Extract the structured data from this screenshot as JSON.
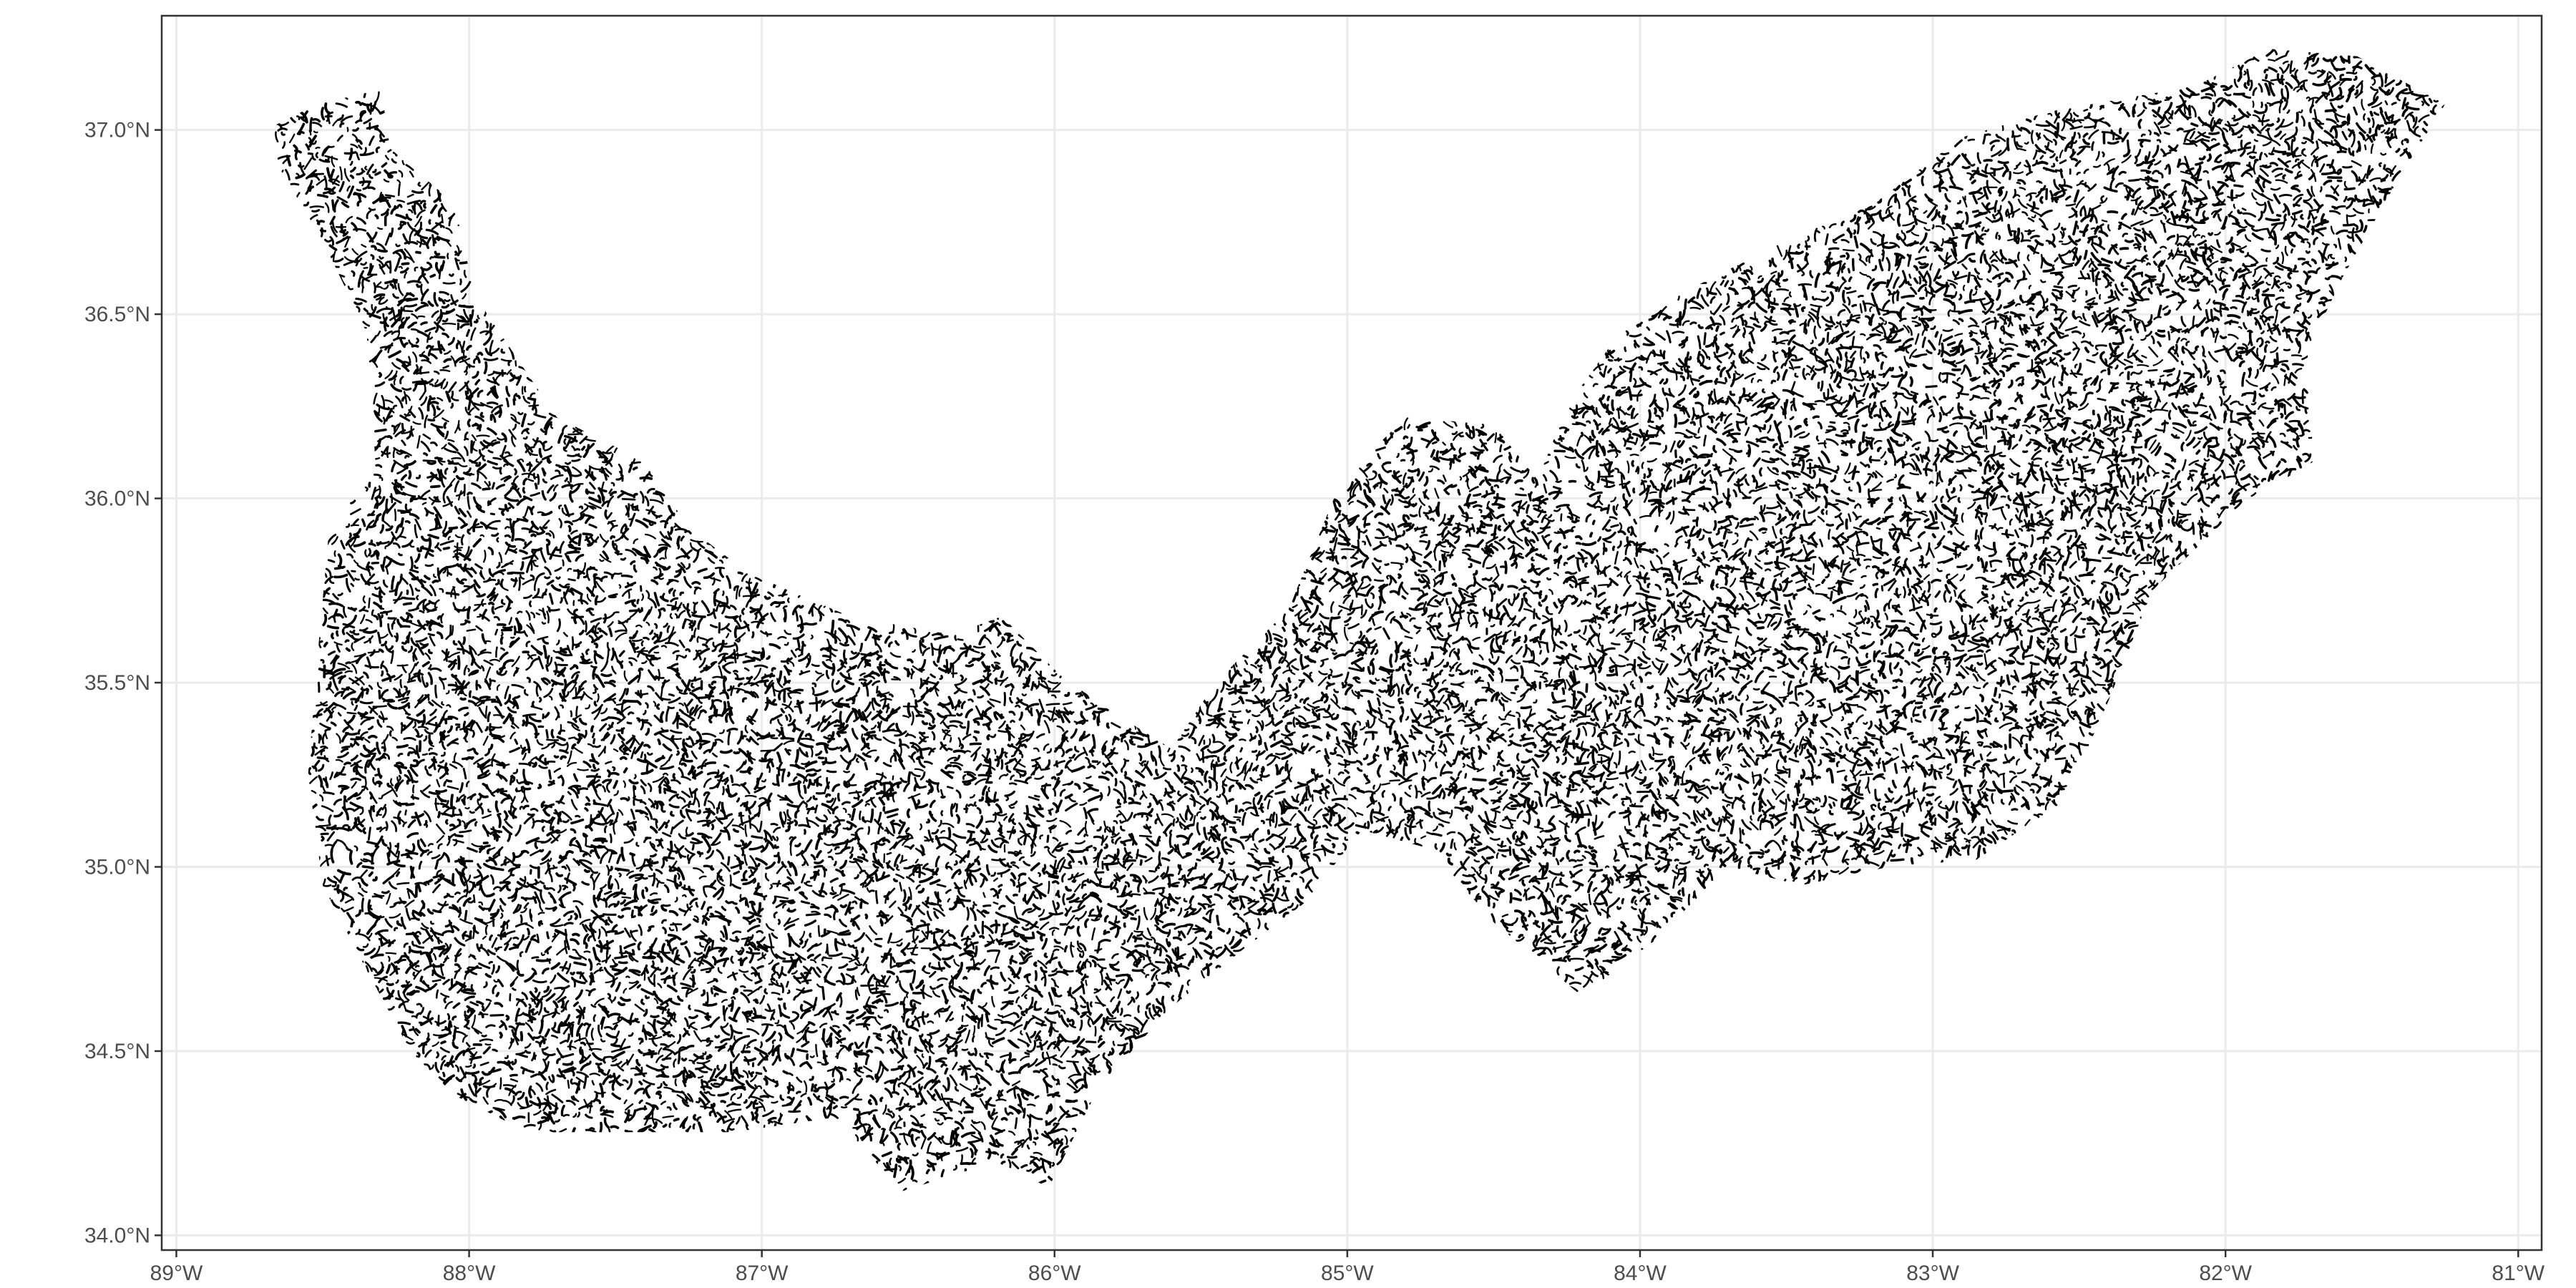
{
  "map": {
    "type": "vector-map",
    "layer": "stream network line segments",
    "colors": {
      "background": "#ffffff",
      "grid": "#ebebeb",
      "line": "#000000",
      "axis_text": "#4d4d4d",
      "border": "#333333"
    },
    "x_range": [
      -89.05,
      -80.92
    ],
    "y_range": [
      33.96,
      37.31
    ],
    "grid": true,
    "x_ticks": [
      {
        "value": -89,
        "label": "89°W"
      },
      {
        "value": -88,
        "label": "88°W"
      },
      {
        "value": -87,
        "label": "87°W"
      },
      {
        "value": -86,
        "label": "86°W"
      },
      {
        "value": -85,
        "label": "85°W"
      },
      {
        "value": -84,
        "label": "84°W"
      },
      {
        "value": -83,
        "label": "83°W"
      },
      {
        "value": -82,
        "label": "82°W"
      },
      {
        "value": -81,
        "label": "81°W"
      }
    ],
    "y_ticks": [
      {
        "value": 34.0,
        "label": "34.0°N"
      },
      {
        "value": 34.5,
        "label": "34.5°N"
      },
      {
        "value": 35.0,
        "label": "35.0°N"
      },
      {
        "value": 35.5,
        "label": "35.5°N"
      },
      {
        "value": 36.0,
        "label": "36.0°N"
      },
      {
        "value": 36.5,
        "label": "36.5°N"
      },
      {
        "value": 37.0,
        "label": "37.0°N"
      }
    ],
    "region_outline_lonlat": [
      [
        -88.67,
        37.01
      ],
      [
        -88.52,
        37.07
      ],
      [
        -88.3,
        37.11
      ],
      [
        -88.27,
        36.95
      ],
      [
        -88.05,
        36.8
      ],
      [
        -87.98,
        36.55
      ],
      [
        -87.7,
        36.22
      ],
      [
        -87.4,
        36.1
      ],
      [
        -87.25,
        35.92
      ],
      [
        -87.05,
        35.8
      ],
      [
        -86.88,
        35.74
      ],
      [
        -86.7,
        35.68
      ],
      [
        -86.35,
        35.63
      ],
      [
        -86.18,
        35.68
      ],
      [
        -85.98,
        35.52
      ],
      [
        -85.82,
        35.43
      ],
      [
        -85.6,
        35.32
      ],
      [
        -85.45,
        35.5
      ],
      [
        -85.2,
        35.7
      ],
      [
        -85.02,
        36.05
      ],
      [
        -84.8,
        36.22
      ],
      [
        -84.5,
        36.2
      ],
      [
        -84.35,
        36.05
      ],
      [
        -84.25,
        36.25
      ],
      [
        -84.05,
        36.47
      ],
      [
        -83.8,
        36.58
      ],
      [
        -83.5,
        36.7
      ],
      [
        -83.2,
        36.8
      ],
      [
        -82.9,
        36.98
      ],
      [
        -82.6,
        37.05
      ],
      [
        -82.1,
        37.12
      ],
      [
        -81.85,
        37.22
      ],
      [
        -81.55,
        37.2
      ],
      [
        -81.25,
        37.07
      ],
      [
        -81.4,
        36.88
      ],
      [
        -81.6,
        36.6
      ],
      [
        -81.72,
        36.4
      ],
      [
        -81.7,
        36.1
      ],
      [
        -81.95,
        35.98
      ],
      [
        -82.25,
        35.75
      ],
      [
        -82.4,
        35.45
      ],
      [
        -82.55,
        35.18
      ],
      [
        -82.85,
        35.02
      ],
      [
        -83.15,
        35.0
      ],
      [
        -83.45,
        34.95
      ],
      [
        -83.7,
        35.0
      ],
      [
        -83.95,
        34.8
      ],
      [
        -84.2,
        34.65
      ],
      [
        -84.5,
        34.85
      ],
      [
        -84.72,
        35.05
      ],
      [
        -84.95,
        35.1
      ],
      [
        -85.15,
        34.9
      ],
      [
        -85.35,
        34.78
      ],
      [
        -85.6,
        34.62
      ],
      [
        -85.85,
        34.4
      ],
      [
        -86.02,
        34.13
      ],
      [
        -86.2,
        34.2
      ],
      [
        -86.4,
        34.15
      ],
      [
        -86.52,
        34.12
      ],
      [
        -86.75,
        34.32
      ],
      [
        -87.1,
        34.28
      ],
      [
        -87.5,
        34.28
      ],
      [
        -87.8,
        34.28
      ],
      [
        -88.05,
        34.38
      ],
      [
        -88.2,
        34.5
      ],
      [
        -88.35,
        34.72
      ],
      [
        -88.5,
        34.95
      ],
      [
        -88.55,
        35.25
      ],
      [
        -88.52,
        35.55
      ],
      [
        -88.48,
        35.9
      ],
      [
        -88.32,
        36.1
      ],
      [
        -88.35,
        36.45
      ],
      [
        -88.5,
        36.7
      ],
      [
        -88.65,
        36.9
      ]
    ]
  }
}
